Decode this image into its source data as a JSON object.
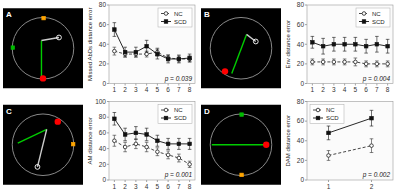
{
  "chart_data": [
    {
      "type": "scatter",
      "title": "A",
      "xlim": [
        -1.3,
        1.3
      ],
      "ylim": [
        -1.3,
        1.3
      ],
      "tick_labels": false,
      "series": [
        {
          "type": "circle",
          "color": "#888888",
          "x": [
            0
          ],
          "values": [
            0
          ],
          "radius": [
            1.0
          ]
        },
        {
          "type": "line",
          "color": "#00cc00",
          "line_style": "solid",
          "x": [
            -0.05,
            -0.05
          ],
          "values": [
            -0.98,
            0.25
          ]
        },
        {
          "type": "line",
          "color": "#cccccc",
          "line_style": "solid",
          "x": [
            -0.05,
            0.52
          ],
          "values": [
            0.25,
            0.35
          ]
        },
        {
          "type": "scatter",
          "color": "red",
          "marker": "circle",
          "x": [
            0.0
          ],
          "values": [
            -0.98
          ]
        },
        {
          "type": "scatter",
          "color": "white",
          "marker": "open-circle",
          "x": [
            0.52
          ],
          "values": [
            0.35
          ]
        },
        {
          "type": "scatter",
          "color": "orange",
          "marker": "square",
          "x": [
            0.02
          ],
          "values": [
            0.98
          ]
        },
        {
          "type": "scatter",
          "color": "#00bb00",
          "marker": "square",
          "x": [
            -0.98
          ],
          "values": [
            0.02
          ]
        }
      ]
    },
    {
      "type": "line",
      "ylabel": "Missed AbDs distance error",
      "annotation": "p = 0.039",
      "x": [
        1,
        2,
        3,
        4,
        5,
        6,
        7,
        8
      ],
      "xlim": [
        0.5,
        8.5
      ],
      "xticks": [
        1,
        2,
        3,
        4,
        5,
        6,
        7,
        8
      ],
      "ylim": [
        0,
        80
      ],
      "yticks": [
        0,
        20,
        40,
        60,
        80
      ],
      "grid": false,
      "legend": "upper right",
      "series": [
        {
          "name": "NC",
          "color": "#333333",
          "marker": "open-circle",
          "line_style": "dashed",
          "values": [
            33,
            30,
            30,
            30,
            32,
            26,
            25,
            25
          ],
          "errors": [
            4,
            3,
            3,
            3,
            4,
            3,
            3,
            3
          ]
        },
        {
          "name": "SCD",
          "color": "#111111",
          "marker": "square",
          "line_style": "solid",
          "values": [
            55,
            32,
            32,
            38,
            30,
            25,
            25,
            26
          ],
          "errors": [
            7,
            5,
            5,
            6,
            5,
            4,
            4,
            4
          ]
        }
      ]
    },
    {
      "type": "scatter",
      "title": "B",
      "xlim": [
        -1.3,
        1.3
      ],
      "ylim": [
        -1.3,
        1.3
      ],
      "tick_labels": false,
      "series": [
        {
          "type": "circle",
          "color": "#888888",
          "x": [
            0
          ],
          "values": [
            0
          ],
          "radius": [
            1.0
          ]
        },
        {
          "type": "line",
          "color": "#00cc00",
          "line_style": "solid",
          "x": [
            -0.3,
            0.18
          ],
          "values": [
            -0.82,
            0.45
          ]
        },
        {
          "type": "line",
          "color": "#cccccc",
          "line_style": "solid",
          "x": [
            0.18,
            0.48
          ],
          "values": [
            0.45,
            0.22
          ]
        },
        {
          "type": "scatter",
          "color": "red",
          "marker": "circle",
          "x": [
            -0.52
          ],
          "values": [
            -0.75
          ]
        },
        {
          "type": "scatter",
          "color": "white",
          "marker": "open-circle",
          "x": [
            0.48
          ],
          "values": [
            0.22
          ]
        }
      ]
    },
    {
      "type": "line",
      "ylabel": "Env distance error",
      "annotation": "p = 0.004",
      "x": [
        1,
        2,
        3,
        4,
        5,
        6,
        7,
        8
      ],
      "xlim": [
        0.5,
        8.5
      ],
      "xticks": [
        1,
        2,
        3,
        4,
        5,
        6,
        7,
        8
      ],
      "ylim": [
        0,
        80
      ],
      "yticks": [
        0,
        20,
        40,
        60,
        80
      ],
      "grid": false,
      "legend": "upper right",
      "series": [
        {
          "name": "NC",
          "color": "#333333",
          "marker": "open-circle",
          "line_style": "dashed",
          "values": [
            22,
            22,
            22,
            22,
            22,
            20,
            20,
            20
          ],
          "errors": [
            3,
            3,
            3,
            3,
            4,
            3,
            3,
            3
          ]
        },
        {
          "name": "SCD",
          "color": "#111111",
          "marker": "square",
          "line_style": "solid",
          "values": [
            42,
            38,
            40,
            40,
            40,
            38,
            40,
            38
          ],
          "errors": [
            6,
            8,
            7,
            7,
            7,
            7,
            8,
            7
          ]
        }
      ]
    },
    {
      "type": "scatter",
      "title": "C",
      "xlim": [
        -1.3,
        1.3
      ],
      "ylim": [
        -1.3,
        1.3
      ],
      "tick_labels": false,
      "series": [
        {
          "type": "circle",
          "color": "#888888",
          "x": [
            0
          ],
          "values": [
            0
          ],
          "radius": [
            1.0
          ]
        },
        {
          "type": "line",
          "color": "#00cc00",
          "line_style": "solid",
          "x": [
            -0.82,
            0.12
          ],
          "values": [
            0.05,
            0.5
          ]
        },
        {
          "type": "line",
          "color": "#cccccc",
          "line_style": "solid",
          "x": [
            0.12,
            -0.18
          ],
          "values": [
            0.5,
            -0.72
          ]
        },
        {
          "type": "scatter",
          "color": "red",
          "marker": "circle",
          "x": [
            0.48
          ],
          "values": [
            0.75
          ]
        },
        {
          "type": "scatter",
          "color": "white",
          "marker": "open-circle",
          "x": [
            -0.18
          ],
          "values": [
            -0.72
          ]
        },
        {
          "type": "scatter",
          "color": "orange",
          "marker": "square",
          "x": [
            0.98
          ],
          "values": [
            0.02
          ]
        }
      ]
    },
    {
      "type": "line",
      "ylabel": "AM distance error",
      "annotation": "p = 0.001",
      "x": [
        1,
        2,
        3,
        4,
        5,
        6,
        7,
        8
      ],
      "xlim": [
        0.5,
        8.5
      ],
      "xticks": [
        1,
        2,
        3,
        4,
        5,
        6,
        7,
        8
      ],
      "ylim": [
        0,
        100
      ],
      "yticks": [
        0,
        20,
        40,
        60,
        80,
        100
      ],
      "grid": false,
      "legend": "upper right",
      "series": [
        {
          "name": "NC",
          "color": "#333333",
          "marker": "open-circle",
          "line_style": "dashed",
          "values": [
            50,
            42,
            46,
            42,
            36,
            32,
            28,
            20
          ],
          "errors": [
            7,
            6,
            6,
            6,
            5,
            5,
            5,
            4
          ]
        },
        {
          "name": "SCD",
          "color": "#111111",
          "marker": "square",
          "line_style": "solid",
          "values": [
            78,
            58,
            60,
            58,
            50,
            46,
            46,
            46
          ],
          "errors": [
            8,
            8,
            8,
            8,
            7,
            7,
            7,
            7
          ]
        }
      ]
    },
    {
      "type": "scatter",
      "title": "D",
      "xlim": [
        -1.3,
        1.3
      ],
      "ylim": [
        -1.3,
        1.3
      ],
      "tick_labels": false,
      "series": [
        {
          "type": "circle",
          "color": "#888888",
          "x": [
            0
          ],
          "values": [
            0
          ],
          "radius": [
            1.0
          ]
        },
        {
          "type": "line",
          "color": "#00cc00",
          "line_style": "solid",
          "x": [
            -0.95,
            0.82
          ],
          "values": [
            0.0,
            0.0
          ]
        },
        {
          "type": "scatter",
          "color": "red",
          "marker": "circle",
          "x": [
            0.82
          ],
          "values": [
            0.0
          ]
        },
        {
          "type": "scatter",
          "color": "orange",
          "marker": "square",
          "x": [
            0.02
          ],
          "values": [
            -0.98
          ]
        },
        {
          "type": "scatter",
          "color": "#00bb00",
          "marker": "square",
          "x": [
            0.02
          ],
          "values": [
            0.98
          ]
        }
      ]
    },
    {
      "type": "line",
      "ylabel": "DAM distance error",
      "annotation": "p = 0.002",
      "x": [
        1,
        2
      ],
      "xlim": [
        0.5,
        2.5
      ],
      "xticks": [
        1,
        2
      ],
      "ylim": [
        0,
        80
      ],
      "yticks": [
        0,
        20,
        40,
        60,
        80
      ],
      "grid": false,
      "legend": "upper left",
      "series": [
        {
          "name": "NC",
          "color": "#333333",
          "marker": "open-circle",
          "line_style": "dashed",
          "values": [
            25,
            35
          ],
          "errors": [
            5,
            7
          ]
        },
        {
          "name": "SCD",
          "color": "#111111",
          "marker": "square",
          "line_style": "solid",
          "values": [
            48,
            63
          ],
          "errors": [
            7,
            8
          ]
        }
      ]
    }
  ]
}
